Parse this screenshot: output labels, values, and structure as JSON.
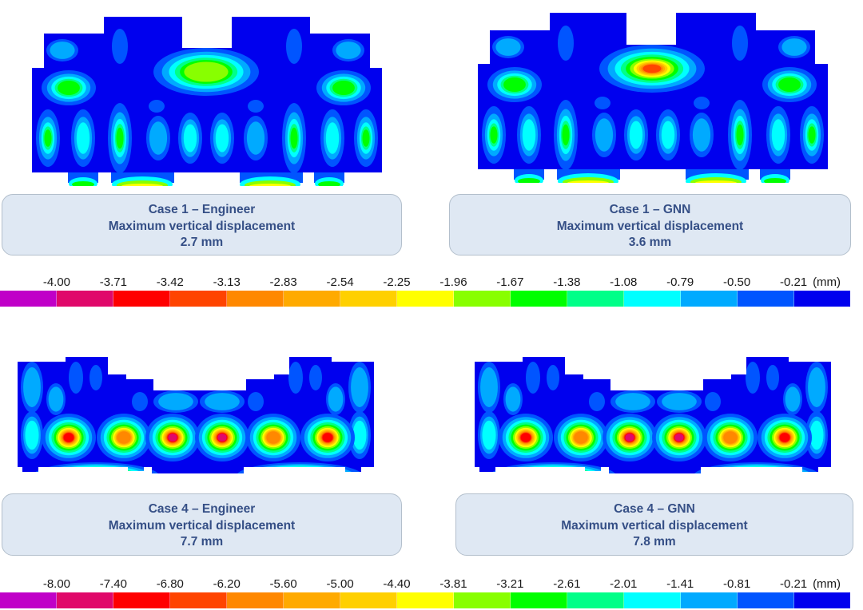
{
  "panels": [
    {
      "id": "case1-engineer",
      "title": "Case 1 – Engineer",
      "subtitle": "Maximum vertical displacement",
      "value": "2.7 mm",
      "max_displacement_mm": 2.7,
      "scale": "case1"
    },
    {
      "id": "case1-gnn",
      "title": "Case 1 – GNN",
      "subtitle": "Maximum vertical displacement",
      "value": "3.6 mm",
      "max_displacement_mm": 3.6,
      "scale": "case1"
    },
    {
      "id": "case4-engineer",
      "title": "Case 4 – Engineer",
      "subtitle": "Maximum vertical displacement",
      "value": "7.7 mm",
      "max_displacement_mm": 7.7,
      "scale": "case4"
    },
    {
      "id": "case4-gnn",
      "title": "Case 4 – GNN",
      "subtitle": "Maximum vertical displacement",
      "value": "7.8 mm",
      "max_displacement_mm": 7.8,
      "scale": "case4"
    }
  ],
  "colorbars": {
    "case1": {
      "unit": "(mm)",
      "ticks": [
        "-4.00",
        "-3.71",
        "-3.42",
        "-3.13",
        "-2.83",
        "-2.54",
        "-2.25",
        "-1.96",
        "-1.67",
        "-1.38",
        "-1.08",
        "-0.79",
        "-0.50",
        "-0.21"
      ]
    },
    "case4": {
      "unit": "(mm)",
      "ticks": [
        "-8.00",
        "-7.40",
        "-6.80",
        "-6.20",
        "-5.60",
        "-5.00",
        "-4.40",
        "-3.81",
        "-3.21",
        "-2.61",
        "-2.01",
        "-1.41",
        "-0.81",
        "-0.21"
      ]
    }
  },
  "palette": [
    "#c000c8",
    "#e0086a",
    "#ff0000",
    "#ff4400",
    "#ff8800",
    "#ffaa00",
    "#ffd000",
    "#ffff00",
    "#88ff00",
    "#00ff00",
    "#00ff88",
    "#00ffff",
    "#00aaff",
    "#0055ff",
    "#0000ee"
  ]
}
